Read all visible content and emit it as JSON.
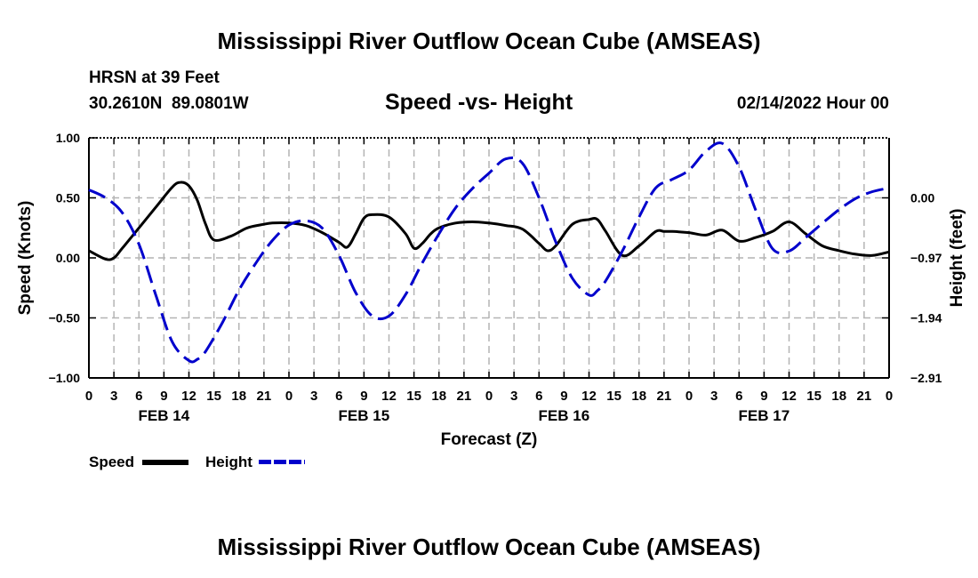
{
  "page": {
    "title": "Mississippi River Outflow Ocean Cube (AMSEAS)",
    "footer_title": "Mississippi River Outflow Ocean Cube (AMSEAS)",
    "station": "HRSN at 39 Feet",
    "coords": "30.2610N  89.0801W",
    "date": "02/14/2022 Hour 00"
  },
  "legend": {
    "speed_label": "Speed",
    "height_label": "Height"
  },
  "colors": {
    "speed": "#000000",
    "height": "#0000cc",
    "grid": "#b4b4b4"
  },
  "chart_data": {
    "type": "line",
    "title": "Speed -vs- Height",
    "xlabel": "Forecast (Z)",
    "ylabel": "Speed (Knots)",
    "y2label": "Height (feet)",
    "x_range_hours": [
      0,
      96
    ],
    "x_tick_labels": [
      "0",
      "3",
      "6",
      "9",
      "12",
      "15",
      "18",
      "21",
      "0",
      "3",
      "6",
      "9",
      "12",
      "15",
      "18",
      "21",
      "0",
      "3",
      "6",
      "9",
      "12",
      "15",
      "18",
      "21",
      "0",
      "3",
      "6",
      "9",
      "12",
      "15",
      "18",
      "21",
      "0"
    ],
    "day_labels": [
      {
        "label": "FEB 14",
        "hour": 9
      },
      {
        "label": "FEB 15",
        "hour": 33
      },
      {
        "label": "FEB 16",
        "hour": 57
      },
      {
        "label": "FEB 17",
        "hour": 81
      }
    ],
    "ylim": [
      -1.0,
      1.0
    ],
    "y_ticks": [
      1.0,
      0.5,
      0.0,
      -0.5,
      -1.0
    ],
    "y_tick_labels": [
      "1.00",
      "0.50",
      "0.00",
      "−0.50",
      "−1.00"
    ],
    "y2lim": [
      -2.91,
      0.97
    ],
    "y2_ticks": [
      0.0,
      -0.97,
      -1.94,
      -2.91
    ],
    "y2_tick_labels": [
      "0.00",
      "−0.97",
      "−1.94",
      "−2.91"
    ],
    "grid": true,
    "series": [
      {
        "name": "Speed",
        "axis": "left",
        "style": "solid",
        "x": [
          0,
          2,
          3,
          4,
          6,
          8,
          10,
          11,
          12,
          13,
          14,
          15,
          17,
          19,
          21,
          22,
          24,
          26,
          28,
          30,
          31,
          32,
          33,
          34,
          36,
          38,
          39,
          40,
          41,
          42,
          44,
          46,
          48,
          50,
          52,
          54,
          55,
          56,
          58,
          60,
          61,
          62,
          64,
          66,
          68,
          69,
          70,
          72,
          74,
          76,
          78,
          80,
          82,
          84,
          86,
          88,
          90,
          92,
          94,
          96
        ],
        "y": [
          0.06,
          -0.01,
          0.0,
          0.08,
          0.25,
          0.42,
          0.59,
          0.63,
          0.6,
          0.48,
          0.28,
          0.15,
          0.18,
          0.25,
          0.28,
          0.29,
          0.29,
          0.27,
          0.21,
          0.13,
          0.09,
          0.2,
          0.33,
          0.36,
          0.34,
          0.2,
          0.08,
          0.12,
          0.2,
          0.25,
          0.29,
          0.3,
          0.29,
          0.27,
          0.24,
          0.12,
          0.06,
          0.1,
          0.28,
          0.32,
          0.32,
          0.22,
          0.02,
          0.1,
          0.22,
          0.22,
          0.22,
          0.21,
          0.19,
          0.23,
          0.14,
          0.17,
          0.22,
          0.3,
          0.2,
          0.1,
          0.06,
          0.03,
          0.02,
          0.05
        ]
      },
      {
        "name": "Height",
        "axis": "right",
        "style": "dashed",
        "x": [
          0,
          2,
          4,
          6,
          8,
          10,
          12,
          13,
          14,
          16,
          18,
          20,
          22,
          24,
          26,
          28,
          30,
          32,
          34,
          36,
          38,
          40,
          42,
          44,
          46,
          48,
          50,
          52,
          54,
          56,
          58,
          60,
          61,
          62,
          64,
          66,
          68,
          70,
          72,
          74,
          76,
          78,
          80,
          82,
          84,
          86,
          88,
          90,
          92,
          94,
          96
        ],
        "y": [
          0.13,
          0.0,
          -0.24,
          -0.75,
          -1.56,
          -2.33,
          -2.63,
          -2.61,
          -2.48,
          -2.02,
          -1.49,
          -1.06,
          -0.69,
          -0.44,
          -0.37,
          -0.49,
          -0.93,
          -1.53,
          -1.91,
          -1.91,
          -1.56,
          -1.05,
          -0.58,
          -0.16,
          0.15,
          0.4,
          0.63,
          0.56,
          0.0,
          -0.71,
          -1.3,
          -1.57,
          -1.5,
          -1.34,
          -0.86,
          -0.31,
          0.16,
          0.3,
          0.45,
          0.75,
          0.88,
          0.5,
          -0.2,
          -0.82,
          -0.86,
          -0.64,
          -0.41,
          -0.19,
          -0.01,
          0.1,
          0.16
        ]
      }
    ]
  }
}
